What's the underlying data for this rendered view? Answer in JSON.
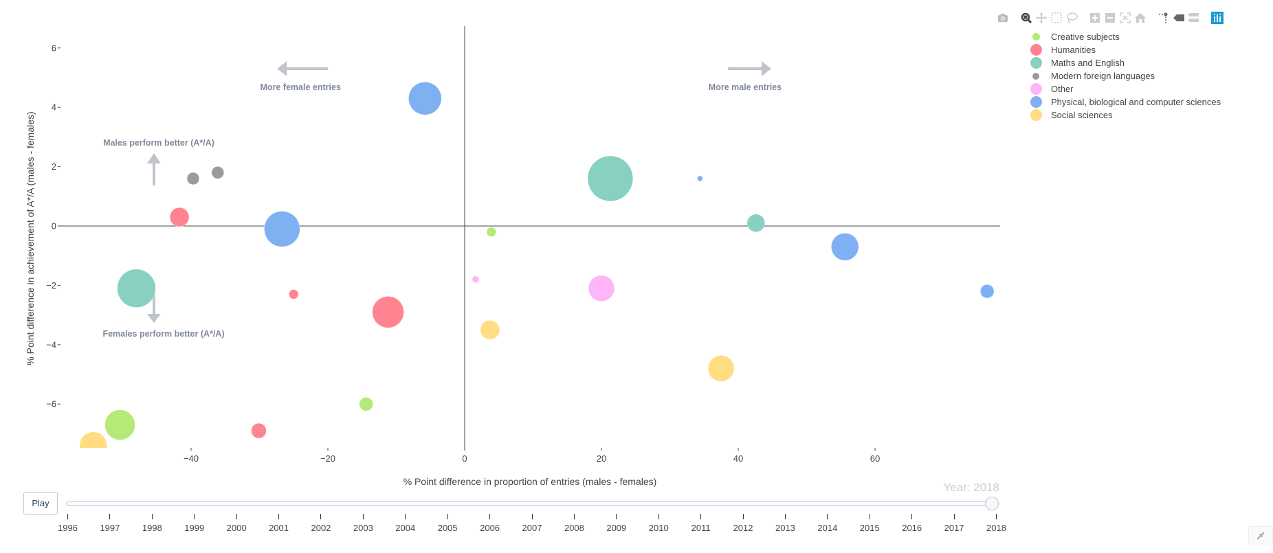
{
  "chart_data": {
    "type": "scatter",
    "subtype": "bubble",
    "title": "",
    "xlabel": "% Point difference in proportion of entries (males - females)",
    "ylabel": "% Point difference in achievement of A*/A (males - females)",
    "xlim": [
      -58,
      79
    ],
    "ylim": [
      -7.6,
      6.9
    ],
    "x_ticks": [
      -40,
      -20,
      0,
      20,
      40,
      60
    ],
    "y_ticks": [
      -6,
      -4,
      -2,
      0,
      2,
      4,
      6
    ],
    "grid": false,
    "zero_lines": true,
    "legend_position": "top-right",
    "frame_year": 2018,
    "series": [
      {
        "name": "Creative subjects",
        "color": "#b3ea78",
        "points": [
          {
            "x": 3.9,
            "y": -0.2,
            "r": 7
          },
          {
            "x": -14.4,
            "y": -6.0,
            "r": 10
          },
          {
            "x": -50.4,
            "y": -6.7,
            "r": 22
          }
        ]
      },
      {
        "name": "Humanities",
        "color": "#ff8390",
        "points": [
          {
            "x": -41.7,
            "y": 0.3,
            "r": 14
          },
          {
            "x": -25.0,
            "y": -2.3,
            "r": 7
          },
          {
            "x": -11.2,
            "y": -2.9,
            "r": 23
          },
          {
            "x": -30.1,
            "y": -6.9,
            "r": 11
          }
        ]
      },
      {
        "name": "Maths and English",
        "color": "#88d0c1",
        "points": [
          {
            "x": 21.3,
            "y": 1.6,
            "r": 33
          },
          {
            "x": 42.6,
            "y": 0.1,
            "r": 13
          },
          {
            "x": -48.0,
            "y": -2.1,
            "r": 28
          }
        ]
      },
      {
        "name": "Modern foreign languages",
        "color": "#9b9b9b",
        "points": [
          {
            "x": -39.7,
            "y": 1.6,
            "r": 9
          },
          {
            "x": -36.1,
            "y": 1.8,
            "r": 9
          }
        ]
      },
      {
        "name": "Other",
        "color": "#ffb5f8",
        "points": [
          {
            "x": 1.6,
            "y": -1.8,
            "r": 5
          },
          {
            "x": 20.0,
            "y": -2.1,
            "r": 19
          }
        ]
      },
      {
        "name": "Physical, biological and computer sciences",
        "color": "#7fb0f2",
        "points": [
          {
            "x": -5.8,
            "y": 4.3,
            "r": 24
          },
          {
            "x": -26.7,
            "y": -0.1,
            "r": 26
          },
          {
            "x": 34.4,
            "y": 1.6,
            "r": 4
          },
          {
            "x": 55.6,
            "y": -0.7,
            "r": 20
          },
          {
            "x": 76.4,
            "y": -2.2,
            "r": 10
          }
        ]
      },
      {
        "name": "Social sciences",
        "color": "#ffdd80",
        "points": [
          {
            "x": 3.7,
            "y": -3.5,
            "r": 14
          },
          {
            "x": 37.5,
            "y": -4.8,
            "r": 19
          },
          {
            "x": -54.3,
            "y": -7.4,
            "r": 20
          }
        ]
      }
    ],
    "annotations": [
      {
        "text": "More female entries",
        "x": -24,
        "y": 4.8,
        "arrow": "left"
      },
      {
        "text": "More male entries",
        "x": 41,
        "y": 4.8,
        "arrow": "right"
      },
      {
        "text": "Males perform better (A*/A)",
        "x": -44.5,
        "y": 2.8,
        "arrow": "up"
      },
      {
        "text": "Females perform better (A*/A)",
        "x": -44.5,
        "y": -3.6,
        "arrow": "down"
      }
    ]
  },
  "legend": {
    "items": [
      {
        "label": "Creative subjects",
        "color": "#b3ea78",
        "size": 11
      },
      {
        "label": "Humanities",
        "color": "#ff8390",
        "size": 17
      },
      {
        "label": "Maths and English",
        "color": "#88d0c1",
        "size": 17
      },
      {
        "label": "Modern foreign languages",
        "color": "#9b9b9b",
        "size": 10
      },
      {
        "label": "Other",
        "color": "#ffb5f8",
        "size": 17
      },
      {
        "label": "Physical, biological and computer sciences",
        "color": "#7fb0f2",
        "size": 17
      },
      {
        "label": "Social sciences",
        "color": "#ffdd80",
        "size": 17
      }
    ]
  },
  "modebar": {
    "buttons": [
      {
        "name": "camera-icon",
        "title": "Download plot as a png"
      },
      {
        "name": "zoom-icon",
        "title": "Zoom",
        "active": true
      },
      {
        "name": "pan-icon",
        "title": "Pan"
      },
      {
        "name": "box-select-icon",
        "title": "Box Select"
      },
      {
        "name": "lasso-select-icon",
        "title": "Lasso Select"
      },
      {
        "name": "zoom-in-icon",
        "title": "Zoom in"
      },
      {
        "name": "zoom-out-icon",
        "title": "Zoom out"
      },
      {
        "name": "autoscale-icon",
        "title": "Autoscale"
      },
      {
        "name": "home-icon",
        "title": "Reset axes"
      },
      {
        "name": "spike-lines-icon",
        "title": "Toggle Spike Lines"
      },
      {
        "name": "hover-closest-icon",
        "title": "Show closest data on hover"
      },
      {
        "name": "hover-compare-icon",
        "title": "Compare data on hover"
      },
      {
        "name": "plotly-logo-icon",
        "title": "Produced with Plotly"
      }
    ]
  },
  "animation": {
    "play_label": "Play",
    "current_value_label": "Year: 2018",
    "years": [
      "1996",
      "1997",
      "1998",
      "1999",
      "2000",
      "2001",
      "2002",
      "2003",
      "2004",
      "2005",
      "2006",
      "2007",
      "2008",
      "2009",
      "2010",
      "2011",
      "2012",
      "2013",
      "2014",
      "2015",
      "2016",
      "2017",
      "2018"
    ],
    "active_year": "2018"
  },
  "colors": {
    "annotation_text": "#7f8a99",
    "arrow": "#c0c5cc",
    "axis_text": "#444444",
    "zero_line": "#444444",
    "active_icon": "#1a9bd7"
  }
}
